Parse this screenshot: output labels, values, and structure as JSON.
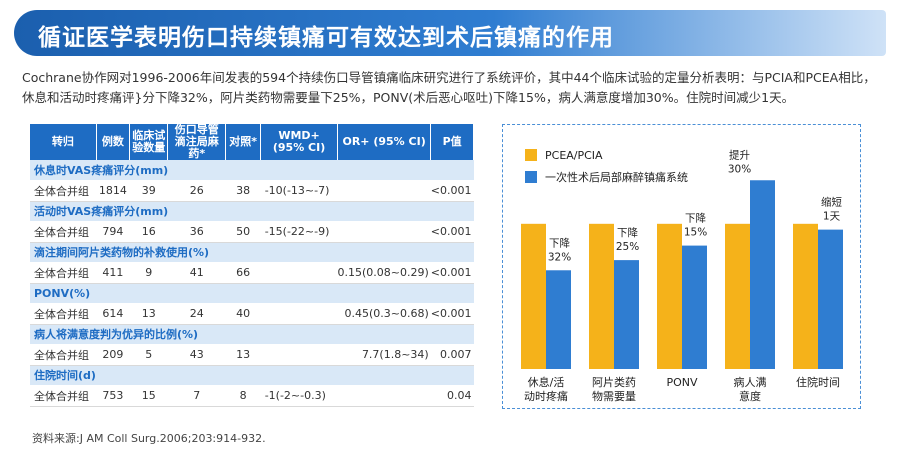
{
  "title": "循证医学表明伤口持续镇痛可有效达到术后镇痛的作用",
  "intro": "Cochrane协作网对1996-2006年间发表的594个持续伤口导管镇痛临床研究进行了系统评价，其中44个临床试验的定量分析表明：与PCIA和PCEA相比，休息和活动时疼痛评}分下降32%，阿片类药物需要量下25%，PONV(术后恶心呕吐)下降15%，病人满意度增加30%。住院时间减少1天。",
  "source": "资料来源:J AM Coll Surg.2006;203:914-932.",
  "table": {
    "headers": [
      "转归",
      "例数",
      "临床试验数量",
      "伤口导管滴注局麻药*",
      "对照*",
      "WMD+ (95% CI)",
      "OR+ (95% CI)",
      "P值"
    ],
    "sections": [
      {
        "name": "休息时VAS疼痛评分(mm)",
        "row": [
          "全体合并组",
          "1814",
          "39",
          "26",
          "38",
          "-10(-13~-7)",
          "",
          "<0.001"
        ]
      },
      {
        "name": "活动时VAS疼痛评分(mm)",
        "row": [
          "全体合并组",
          "794",
          "16",
          "36",
          "50",
          "-15(-22~-9)",
          "",
          "<0.001"
        ]
      },
      {
        "name": "滴注期间阿片类药物的补救使用(%)",
        "row": [
          "全体合并组",
          "411",
          "9",
          "41",
          "66",
          "",
          "0.15(0.08~0.29)",
          "<0.001"
        ]
      },
      {
        "name": "PONV(%)",
        "row": [
          "全体合并组",
          "614",
          "13",
          "24",
          "40",
          "",
          "0.45(0.3~0.68)",
          "<0.001"
        ]
      },
      {
        "name": "病人将满意度判为优异的比例(%)",
        "row": [
          "全体合并组",
          "209",
          "5",
          "43",
          "13",
          "",
          "7.7(1.8~34)",
          "0.007"
        ]
      },
      {
        "name": "住院时间(d)",
        "row": [
          "全体合并组",
          "753",
          "15",
          "7",
          "8",
          "-1(-2~-0.3)",
          "",
          "0.04"
        ]
      }
    ]
  },
  "chart_data": {
    "type": "bar",
    "categories": [
      "休息/活动时疼痛",
      "阿片类药物需要量",
      "PONV",
      "病人满意度",
      "住院时间"
    ],
    "series": [
      {
        "name": "PCEA/PCIA",
        "color": "#f5b21a",
        "values": [
          100,
          100,
          100,
          100,
          100
        ]
      },
      {
        "name": "一次性术后局部麻醉镇痛系统",
        "color": "#2f7dd1",
        "values": [
          68,
          75,
          85,
          130,
          96
        ]
      }
    ],
    "annotations": [
      {
        "category": "休息/活动时疼痛",
        "lines": [
          "下降",
          "32%"
        ]
      },
      {
        "category": "阿片类药物需要量",
        "lines": [
          "下降",
          "25%"
        ]
      },
      {
        "category": "PONV",
        "lines": [
          "下降",
          "15%"
        ]
      },
      {
        "category": "病人满意度",
        "lines": [
          "提升",
          "30%"
        ]
      },
      {
        "category": "住院时间",
        "lines": [
          "缩短",
          "1天"
        ]
      }
    ]
  }
}
